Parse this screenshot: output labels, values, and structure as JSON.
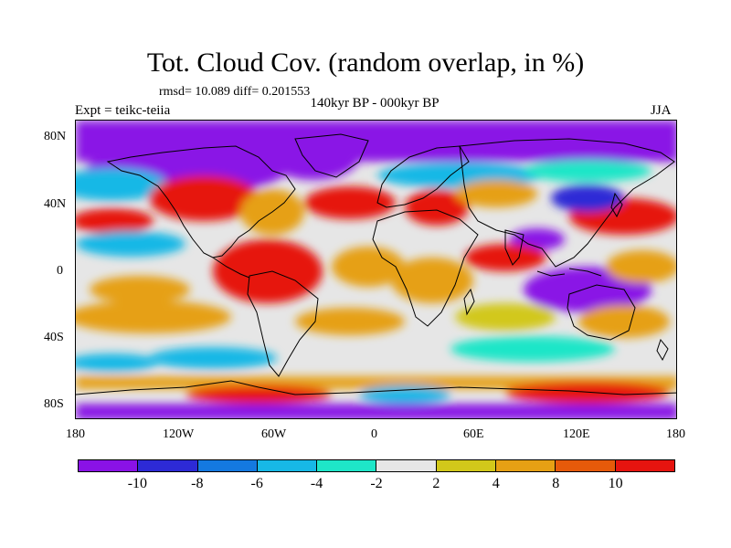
{
  "title": "Tot. Cloud Cov. (random overlap, in %)",
  "stats": "rmsd= 10.089 diff= 0.201553",
  "experiment": "Expt = teikc-teiia",
  "period": "140kyr BP - 000kyr BP",
  "season": "JJA",
  "lat_ticks": [
    "80N",
    "40N",
    "0",
    "40S",
    "80S"
  ],
  "lon_ticks": [
    "180",
    "120W",
    "60W",
    "0",
    "60E",
    "120E",
    "180"
  ],
  "colorbar": {
    "levels": [
      "-10",
      "-8",
      "-6",
      "-4",
      "-2",
      "2",
      "4",
      "8",
      "10"
    ],
    "colors": [
      "#8a12e6",
      "#2d2ad6",
      "#1479e0",
      "#17b8e6",
      "#1ee6c8",
      "#e6e6e6",
      "#d2c81a",
      "#e6a014",
      "#e65a0a",
      "#e6140f"
    ]
  },
  "map_colors": {
    "violet": "#8a12e6",
    "blue": "#2d2ad6",
    "midblue": "#1479e0",
    "cyan": "#17b8e6",
    "aqua": "#1ee6c8",
    "grey": "#e6e6e6",
    "yellow": "#d2c81a",
    "orange": "#e6a014",
    "darkorange": "#e65a0a",
    "red": "#e6140f"
  }
}
